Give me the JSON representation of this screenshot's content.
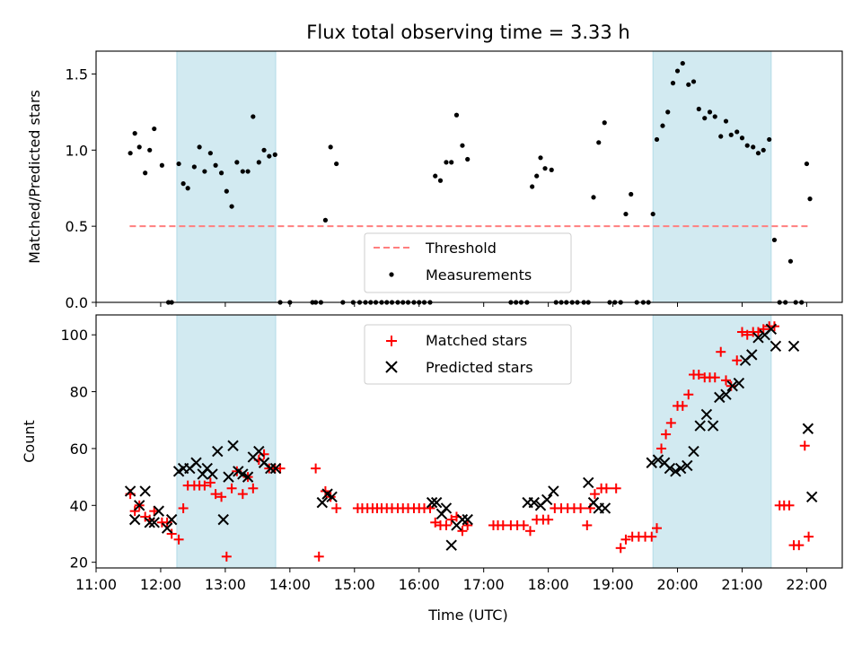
{
  "chart_data": [
    {
      "type": "scatter",
      "title": "Flux total observing time = 3.33 h",
      "ylabel": "Matched/Predicted stars",
      "xlabel": "",
      "ylim": [
        0,
        1.65
      ],
      "yticks": [
        0.0,
        0.5,
        1.0,
        1.5
      ],
      "ytick_labels": [
        "0.0",
        "0.5",
        "1.0",
        "1.5"
      ],
      "xlim_hours": [
        11.0,
        22.55
      ],
      "shaded_intervals_hours": [
        [
          12.25,
          13.78
        ],
        [
          19.62,
          21.45
        ]
      ],
      "shade_color": "#add8e6",
      "legend": {
        "loc": "lower-center",
        "entries": [
          "Threshold",
          "Measurements"
        ]
      },
      "threshold": {
        "name": "Threshold",
        "y": 0.5,
        "x_range_hours": [
          11.52,
          22.03
        ],
        "color": "#ff7f7f",
        "style": "dashed"
      },
      "series": [
        {
          "name": "Measurements",
          "color": "#000000",
          "marker": "dot",
          "x": [
            11.53,
            11.6,
            11.67,
            11.76,
            11.83,
            11.9,
            12.02,
            12.12,
            12.17,
            12.28,
            12.35,
            12.42,
            12.52,
            12.6,
            12.68,
            12.77,
            12.85,
            12.94,
            13.02,
            13.1,
            13.18,
            13.27,
            13.35,
            13.43,
            13.52,
            13.6,
            13.68,
            13.77,
            13.85,
            14.0,
            14.35,
            14.4,
            14.48,
            14.55,
            14.63,
            14.72,
            14.82,
            14.98,
            15.08,
            15.17,
            15.25,
            15.33,
            15.42,
            15.5,
            15.58,
            15.67,
            15.75,
            15.83,
            15.92,
            16.0,
            16.08,
            16.17,
            16.25,
            16.33,
            16.42,
            16.5,
            16.58,
            16.67,
            16.75,
            17.42,
            17.5,
            17.58,
            17.67,
            17.75,
            17.82,
            17.88,
            17.95,
            18.05,
            18.12,
            18.2,
            18.28,
            18.37,
            18.45,
            18.55,
            18.62,
            18.7,
            18.78,
            18.87,
            18.95,
            19.03,
            19.12,
            19.2,
            19.28,
            19.37,
            19.47,
            19.55,
            19.62,
            19.68,
            19.77,
            19.85,
            19.93,
            20.0,
            20.08,
            20.17,
            20.25,
            20.33,
            20.42,
            20.5,
            20.58,
            20.67,
            20.75,
            20.83,
            20.92,
            21.0,
            21.08,
            21.17,
            21.25,
            21.33,
            21.42,
            21.5,
            21.58,
            21.67,
            21.75,
            21.83,
            21.92,
            22.0,
            22.05
          ],
          "y": [
            0.98,
            1.11,
            1.02,
            0.85,
            1.0,
            1.14,
            0.9,
            0.0,
            0.0,
            0.91,
            0.78,
            0.75,
            0.89,
            1.02,
            0.86,
            0.98,
            0.9,
            0.85,
            0.73,
            0.63,
            0.92,
            0.86,
            0.86,
            1.22,
            0.92,
            1.0,
            0.96,
            0.97,
            0.0,
            0.0,
            0.0,
            0.0,
            0.0,
            0.54,
            1.02,
            0.91,
            0.0,
            0.0,
            0.0,
            0.0,
            0.0,
            0.0,
            0.0,
            0.0,
            0.0,
            0.0,
            0.0,
            0.0,
            0.0,
            0.0,
            0.0,
            0.0,
            0.83,
            0.8,
            0.92,
            0.92,
            1.23,
            1.03,
            0.94,
            0.0,
            0.0,
            0.0,
            0.0,
            0.76,
            0.83,
            0.95,
            0.88,
            0.87,
            0.0,
            0.0,
            0.0,
            0.0,
            0.0,
            0.0,
            0.0,
            0.69,
            1.05,
            1.18,
            0.0,
            0.0,
            0.0,
            0.58,
            0.71,
            0.0,
            0.0,
            0.0,
            0.58,
            1.07,
            1.16,
            1.25,
            1.44,
            1.52,
            1.57,
            1.43,
            1.45,
            1.27,
            1.21,
            1.25,
            1.22,
            1.09,
            1.19,
            1.1,
            1.12,
            1.08,
            1.03,
            1.02,
            0.98,
            1.0,
            1.07,
            0.41,
            0.0,
            0.0,
            0.27,
            0.0,
            0.0,
            0.91,
            0.68
          ]
        }
      ]
    },
    {
      "type": "scatter",
      "title": "",
      "xlabel": "Time (UTC)",
      "ylabel": "Count",
      "ylim": [
        18,
        107
      ],
      "yticks": [
        20,
        40,
        60,
        80,
        100
      ],
      "ytick_labels": [
        "20",
        "40",
        "60",
        "80",
        "100"
      ],
      "xlim_hours": [
        11.0,
        22.55
      ],
      "xticks_hours": [
        11,
        12,
        13,
        14,
        15,
        16,
        17,
        18,
        19,
        20,
        21,
        22
      ],
      "xtick_labels": [
        "11:00",
        "12:00",
        "13:00",
        "14:00",
        "15:00",
        "16:00",
        "17:00",
        "18:00",
        "19:00",
        "20:00",
        "21:00",
        "22:00"
      ],
      "shaded_intervals_hours": [
        [
          12.25,
          13.78
        ],
        [
          19.62,
          21.45
        ]
      ],
      "shade_color": "#add8e6",
      "legend": {
        "loc": "top-center",
        "entries": [
          "Matched stars",
          "Predicted stars"
        ]
      },
      "series": [
        {
          "name": "Matched stars",
          "color": "#ff0000",
          "marker": "plus",
          "x": [
            11.53,
            11.6,
            11.67,
            11.76,
            11.83,
            11.9,
            12.02,
            12.1,
            12.17,
            12.28,
            12.35,
            12.42,
            12.52,
            12.6,
            12.68,
            12.77,
            12.85,
            12.94,
            13.02,
            13.1,
            13.18,
            13.27,
            13.35,
            13.43,
            13.52,
            13.6,
            13.68,
            13.77,
            13.85,
            14.4,
            14.45,
            14.55,
            14.63,
            14.72,
            15.05,
            15.12,
            15.2,
            15.28,
            15.35,
            15.42,
            15.5,
            15.58,
            15.67,
            15.75,
            15.83,
            15.92,
            16.0,
            16.08,
            16.17,
            16.25,
            16.33,
            16.42,
            16.5,
            16.58,
            16.67,
            16.75,
            17.15,
            17.22,
            17.3,
            17.42,
            17.52,
            17.62,
            17.72,
            17.82,
            17.92,
            18.0,
            18.1,
            18.2,
            18.3,
            18.4,
            18.5,
            18.6,
            18.65,
            18.72,
            18.82,
            18.9,
            19.05,
            19.12,
            19.2,
            19.3,
            19.4,
            19.5,
            19.6,
            19.68,
            19.75,
            19.82,
            19.9,
            20.0,
            20.08,
            20.17,
            20.25,
            20.33,
            20.42,
            20.5,
            20.58,
            20.67,
            20.75,
            20.83,
            20.92,
            21.0,
            21.08,
            21.17,
            21.25,
            21.33,
            21.42,
            21.5,
            21.58,
            21.65,
            21.73,
            21.8,
            21.88,
            21.97,
            22.03
          ],
          "y": [
            44,
            38,
            40,
            36,
            35,
            38,
            34,
            34,
            30,
            28,
            39,
            47,
            47,
            47,
            47,
            48,
            44,
            43,
            22,
            46,
            52,
            44,
            50,
            46,
            56,
            58,
            53,
            53,
            53,
            53,
            22,
            45,
            43,
            39,
            39,
            39,
            39,
            39,
            39,
            39,
            39,
            39,
            39,
            39,
            39,
            39,
            39,
            39,
            39,
            34,
            33,
            33,
            35,
            36,
            31,
            33,
            33,
            33,
            33,
            33,
            33,
            33,
            31,
            35,
            35,
            35,
            39,
            39,
            39,
            39,
            39,
            33,
            39,
            44,
            46,
            46,
            46,
            25,
            28,
            29,
            29,
            29,
            29,
            32,
            60,
            65,
            69,
            75,
            75,
            79,
            86,
            86,
            85,
            85,
            85,
            94,
            84,
            82,
            91,
            101,
            100,
            101,
            101,
            102,
            103,
            103,
            40,
            40,
            40,
            26,
            26,
            61,
            29
          ]
        },
        {
          "name": "Predicted stars",
          "color": "#000000",
          "marker": "x",
          "x": [
            11.53,
            11.6,
            11.67,
            11.76,
            11.83,
            11.9,
            11.97,
            12.1,
            12.17,
            12.28,
            12.35,
            12.45,
            12.55,
            12.65,
            12.72,
            12.8,
            12.88,
            12.97,
            13.05,
            13.12,
            13.2,
            13.27,
            13.35,
            13.43,
            13.52,
            13.6,
            13.7,
            13.78,
            14.5,
            14.58,
            14.65,
            16.2,
            16.27,
            16.35,
            16.42,
            16.5,
            16.58,
            16.67,
            16.75,
            17.68,
            17.78,
            17.88,
            17.98,
            18.08,
            18.62,
            18.7,
            18.78,
            18.88,
            19.6,
            19.7,
            19.8,
            19.88,
            19.97,
            20.05,
            20.15,
            20.25,
            20.35,
            20.45,
            20.55,
            20.65,
            20.75,
            20.85,
            20.95,
            21.05,
            21.15,
            21.25,
            21.35,
            21.45,
            21.52,
            21.8,
            22.02,
            22.08
          ],
          "y": [
            45,
            35,
            40,
            45,
            34,
            34,
            38,
            32,
            35,
            52,
            53,
            53,
            55,
            51,
            53,
            51,
            59,
            35,
            50,
            61,
            52,
            51,
            50,
            57,
            59,
            55,
            53,
            53,
            41,
            44,
            43,
            41,
            41,
            37,
            39,
            26,
            33,
            35,
            35,
            41,
            41,
            40,
            42,
            45,
            48,
            41,
            39,
            39,
            55,
            56,
            55,
            53,
            52,
            53,
            54,
            59,
            68,
            72,
            68,
            78,
            79,
            82,
            83,
            91,
            93,
            99,
            100,
            102,
            96,
            96,
            67,
            43
          ]
        }
      ]
    }
  ]
}
